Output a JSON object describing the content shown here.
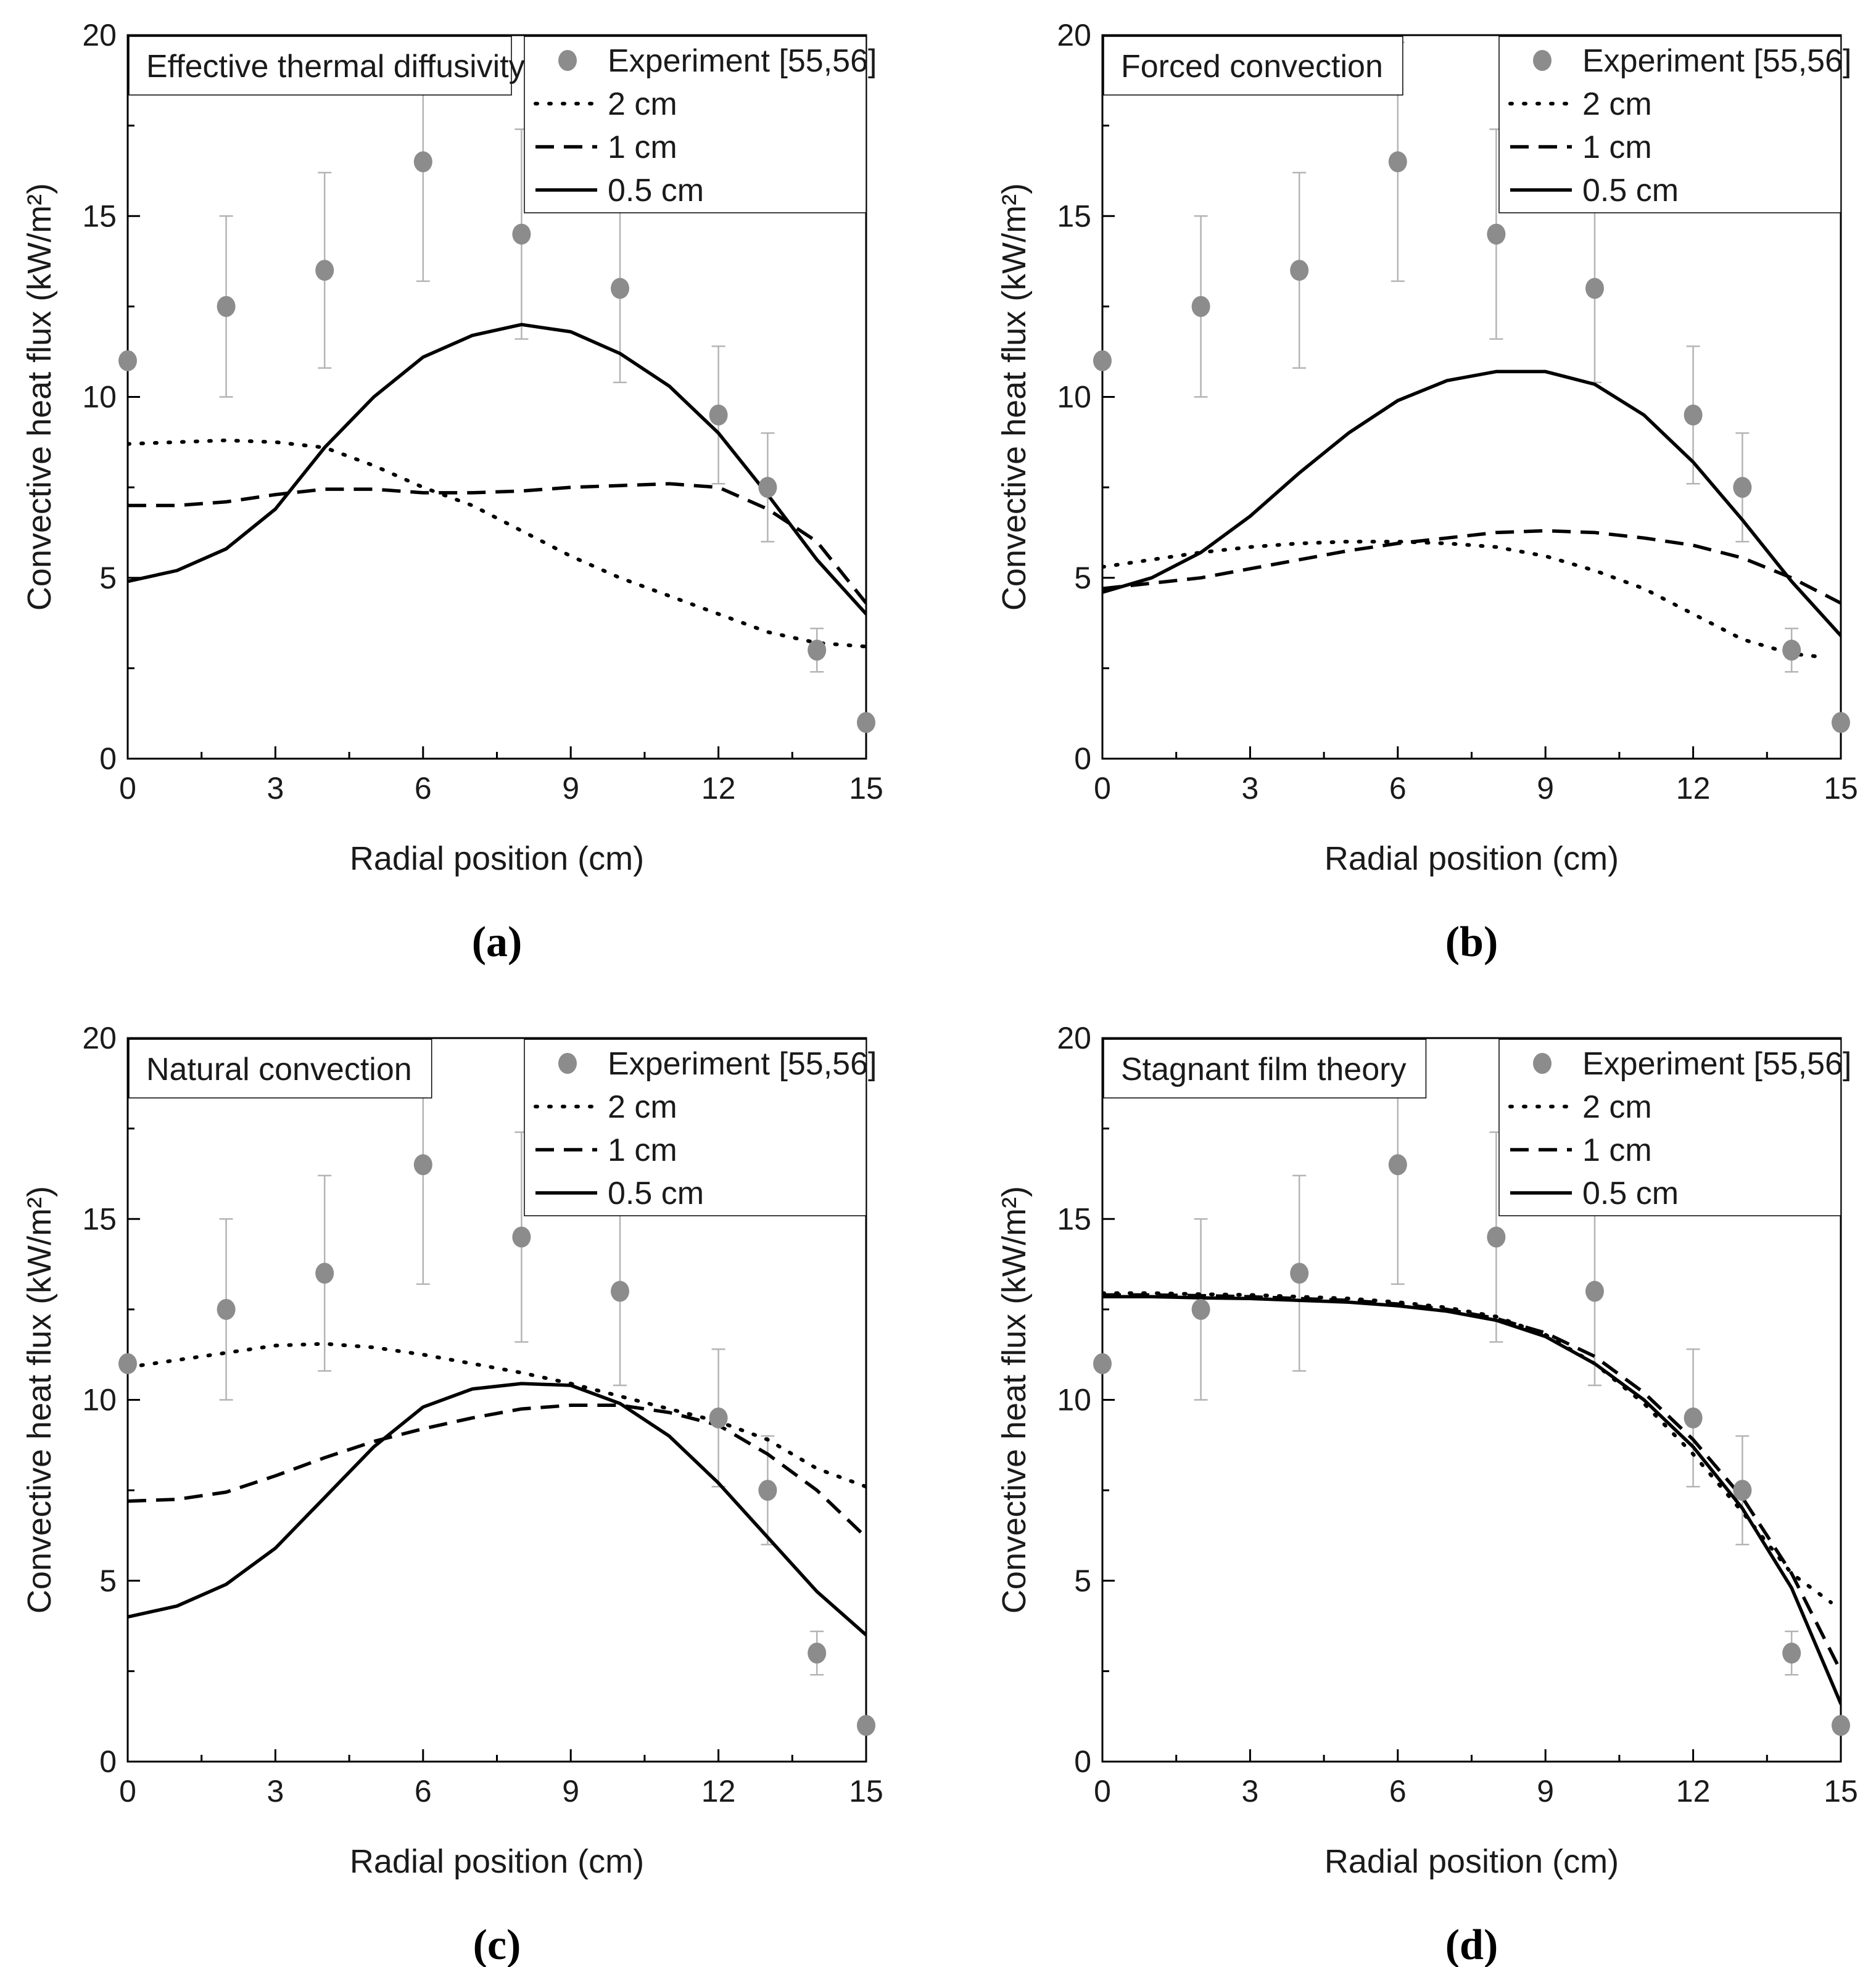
{
  "colors": {
    "experiment_marker": "#8c8c8c",
    "error_bar": "#b4b4b4",
    "line": "#000000",
    "axis": "#000000",
    "background": "#ffffff"
  },
  "chart_data": [
    {
      "panel": "a",
      "type": "line",
      "caption": "(a)",
      "title_box": "Effective thermal diffusivity",
      "xlabel": "Radial position (cm)",
      "ylabel": "Convective heat flux (kW/m²)",
      "xlim": [
        0,
        15
      ],
      "ylim": [
        0,
        20
      ],
      "xticks": [
        0,
        3,
        6,
        9,
        12,
        15
      ],
      "yticks": [
        0,
        5,
        10,
        15,
        20
      ],
      "legend_position": "top-right",
      "experiment": {
        "name": "Experiment [55,56]",
        "x": [
          0,
          2,
          4,
          6,
          8,
          10,
          12,
          13,
          14,
          15
        ],
        "y": [
          11.0,
          12.5,
          13.5,
          16.5,
          14.5,
          13.0,
          9.5,
          7.5,
          3.0,
          1.0
        ],
        "err": [
          0.0,
          2.5,
          2.7,
          3.3,
          2.9,
          2.6,
          1.9,
          1.5,
          0.6,
          0.0
        ]
      },
      "series": [
        {
          "name": "2 cm",
          "style": "dotted",
          "x": [
            0,
            1,
            2,
            3,
            4,
            5,
            6,
            7,
            8,
            9,
            10,
            11,
            12,
            13,
            14,
            15
          ],
          "y": [
            8.7,
            8.75,
            8.8,
            8.75,
            8.6,
            8.1,
            7.5,
            7.0,
            6.3,
            5.6,
            5.0,
            4.5,
            4.0,
            3.5,
            3.2,
            3.1
          ]
        },
        {
          "name": "1 cm",
          "style": "dashed",
          "x": [
            0,
            1,
            2,
            3,
            4,
            5,
            6,
            7,
            8,
            9,
            10,
            11,
            12,
            13,
            14,
            15
          ],
          "y": [
            7.0,
            7.0,
            7.1,
            7.3,
            7.45,
            7.45,
            7.35,
            7.35,
            7.4,
            7.5,
            7.55,
            7.6,
            7.5,
            6.9,
            6.0,
            4.3
          ]
        },
        {
          "name": "0.5 cm",
          "style": "solid",
          "x": [
            0,
            1,
            2,
            3,
            4,
            5,
            6,
            7,
            8,
            9,
            10,
            11,
            12,
            13,
            14,
            15
          ],
          "y": [
            4.9,
            5.2,
            5.8,
            6.9,
            8.6,
            10.0,
            11.1,
            11.7,
            12.0,
            11.8,
            11.2,
            10.3,
            9.0,
            7.3,
            5.5,
            4.0
          ]
        }
      ]
    },
    {
      "panel": "b",
      "type": "line",
      "caption": "(b)",
      "title_box": "Forced convection",
      "xlabel": "Radial position (cm)",
      "ylabel": "Convective heat flux (kW/m²)",
      "xlim": [
        0,
        15
      ],
      "ylim": [
        0,
        20
      ],
      "xticks": [
        0,
        3,
        6,
        9,
        12,
        15
      ],
      "yticks": [
        0,
        5,
        10,
        15,
        20
      ],
      "legend_position": "top-right",
      "experiment": {
        "name": "Experiment [55,56]",
        "x": [
          0,
          2,
          4,
          6,
          8,
          10,
          12,
          13,
          14,
          15
        ],
        "y": [
          11.0,
          12.5,
          13.5,
          16.5,
          14.5,
          13.0,
          9.5,
          7.5,
          3.0,
          1.0
        ],
        "err": [
          0.0,
          2.5,
          2.7,
          3.3,
          2.9,
          2.6,
          1.9,
          1.5,
          0.6,
          0.0
        ]
      },
      "series": [
        {
          "name": "2 cm",
          "style": "dotted",
          "x": [
            0,
            1,
            2,
            3,
            4,
            5,
            6,
            7,
            8,
            9,
            10,
            11,
            12,
            13,
            14,
            14.7
          ],
          "y": [
            5.3,
            5.5,
            5.7,
            5.85,
            5.95,
            6.0,
            6.0,
            5.95,
            5.85,
            5.6,
            5.2,
            4.7,
            4.0,
            3.3,
            2.9,
            2.8
          ]
        },
        {
          "name": "1 cm",
          "style": "dashed",
          "x": [
            0,
            1,
            2,
            3,
            4,
            5,
            6,
            7,
            8,
            9,
            10,
            11,
            12,
            13,
            14,
            15
          ],
          "y": [
            4.7,
            4.85,
            5.0,
            5.25,
            5.5,
            5.75,
            5.95,
            6.1,
            6.25,
            6.3,
            6.25,
            6.1,
            5.9,
            5.55,
            5.0,
            4.3
          ]
        },
        {
          "name": "0.5 cm",
          "style": "solid",
          "x": [
            0,
            1,
            2,
            3,
            4,
            5,
            6,
            7,
            8,
            9,
            10,
            11,
            12,
            13,
            14,
            15
          ],
          "y": [
            4.6,
            5.0,
            5.7,
            6.7,
            7.9,
            9.0,
            9.9,
            10.45,
            10.7,
            10.7,
            10.35,
            9.5,
            8.2,
            6.6,
            4.9,
            3.4
          ]
        }
      ]
    },
    {
      "panel": "c",
      "type": "line",
      "caption": "(c)",
      "title_box": "Natural convection",
      "xlabel": "Radial position (cm)",
      "ylabel": "Convective heat flux (kW/m²)",
      "xlim": [
        0,
        15
      ],
      "ylim": [
        0,
        20
      ],
      "xticks": [
        0,
        3,
        6,
        9,
        12,
        15
      ],
      "yticks": [
        0,
        5,
        10,
        15,
        20
      ],
      "legend_position": "top-right",
      "experiment": {
        "name": "Experiment [55,56]",
        "x": [
          0,
          2,
          4,
          6,
          8,
          10,
          12,
          13,
          14,
          15
        ],
        "y": [
          11.0,
          12.5,
          13.5,
          16.5,
          14.5,
          13.0,
          9.5,
          7.5,
          3.0,
          1.0
        ],
        "err": [
          0.0,
          2.5,
          2.7,
          3.3,
          2.9,
          2.6,
          1.9,
          1.5,
          0.6,
          0.0
        ]
      },
      "series": [
        {
          "name": "2 cm",
          "style": "dotted",
          "x": [
            0,
            1,
            2,
            3,
            4,
            5,
            6,
            7,
            8,
            9,
            10,
            11,
            12,
            13,
            14,
            15
          ],
          "y": [
            10.9,
            11.1,
            11.3,
            11.5,
            11.55,
            11.45,
            11.25,
            11.0,
            10.75,
            10.45,
            10.1,
            9.75,
            9.4,
            8.9,
            8.1,
            7.6
          ]
        },
        {
          "name": "1 cm",
          "style": "dashed",
          "x": [
            0,
            1,
            2,
            3,
            4,
            5,
            6,
            7,
            8,
            9,
            10,
            11,
            12,
            13,
            14,
            15
          ],
          "y": [
            7.2,
            7.25,
            7.45,
            7.9,
            8.4,
            8.85,
            9.2,
            9.5,
            9.75,
            9.85,
            9.85,
            9.65,
            9.3,
            8.5,
            7.5,
            6.2
          ]
        },
        {
          "name": "0.5 cm",
          "style": "solid",
          "x": [
            0,
            1,
            2,
            3,
            4,
            5,
            6,
            7,
            8,
            9,
            10,
            11,
            12,
            13,
            14,
            15
          ],
          "y": [
            4.0,
            4.3,
            4.9,
            5.9,
            7.3,
            8.7,
            9.8,
            10.3,
            10.45,
            10.4,
            9.9,
            9.0,
            7.7,
            6.2,
            4.7,
            3.5
          ]
        }
      ]
    },
    {
      "panel": "d",
      "type": "line",
      "caption": "(d)",
      "title_box": "Stagnant film theory",
      "xlabel": "Radial position (cm)",
      "ylabel": "Convective heat flux (kW/m²)",
      "xlim": [
        0,
        15
      ],
      "ylim": [
        0,
        20
      ],
      "xticks": [
        0,
        3,
        6,
        9,
        12,
        15
      ],
      "yticks": [
        0,
        5,
        10,
        15,
        20
      ],
      "legend_position": "top-right",
      "experiment": {
        "name": "Experiment [55,56]",
        "x": [
          0,
          2,
          4,
          6,
          8,
          10,
          12,
          13,
          14,
          15
        ],
        "y": [
          11.0,
          12.5,
          13.5,
          16.5,
          14.5,
          13.0,
          9.5,
          7.5,
          3.0,
          1.0
        ],
        "err": [
          0.0,
          2.5,
          2.7,
          3.3,
          2.9,
          2.6,
          1.9,
          1.5,
          0.6,
          0.0
        ]
      },
      "series": [
        {
          "name": "2 cm",
          "style": "dotted",
          "x": [
            0,
            1,
            2,
            3,
            4,
            5,
            6,
            7,
            8,
            9,
            10,
            11,
            12,
            13,
            14,
            14.8
          ],
          "y": [
            12.95,
            12.95,
            12.92,
            12.9,
            12.85,
            12.8,
            12.7,
            12.55,
            12.3,
            11.8,
            11.0,
            9.9,
            8.5,
            6.9,
            5.2,
            4.4
          ]
        },
        {
          "name": "1 cm",
          "style": "dashed",
          "x": [
            0,
            1,
            2,
            3,
            4,
            5,
            6,
            7,
            8,
            9,
            10,
            11,
            12,
            13,
            14,
            15
          ],
          "y": [
            12.9,
            12.9,
            12.88,
            12.85,
            12.8,
            12.75,
            12.65,
            12.5,
            12.25,
            11.85,
            11.2,
            10.2,
            8.9,
            7.3,
            5.2,
            2.5
          ]
        },
        {
          "name": "0.5 cm",
          "style": "solid",
          "x": [
            0,
            1,
            2,
            3,
            4,
            5,
            6,
            7,
            8,
            9,
            10,
            11,
            12,
            13,
            14,
            15
          ],
          "y": [
            12.85,
            12.85,
            12.82,
            12.8,
            12.75,
            12.7,
            12.6,
            12.45,
            12.2,
            11.75,
            11.0,
            10.0,
            8.7,
            7.0,
            4.8,
            1.6
          ]
        }
      ]
    }
  ]
}
